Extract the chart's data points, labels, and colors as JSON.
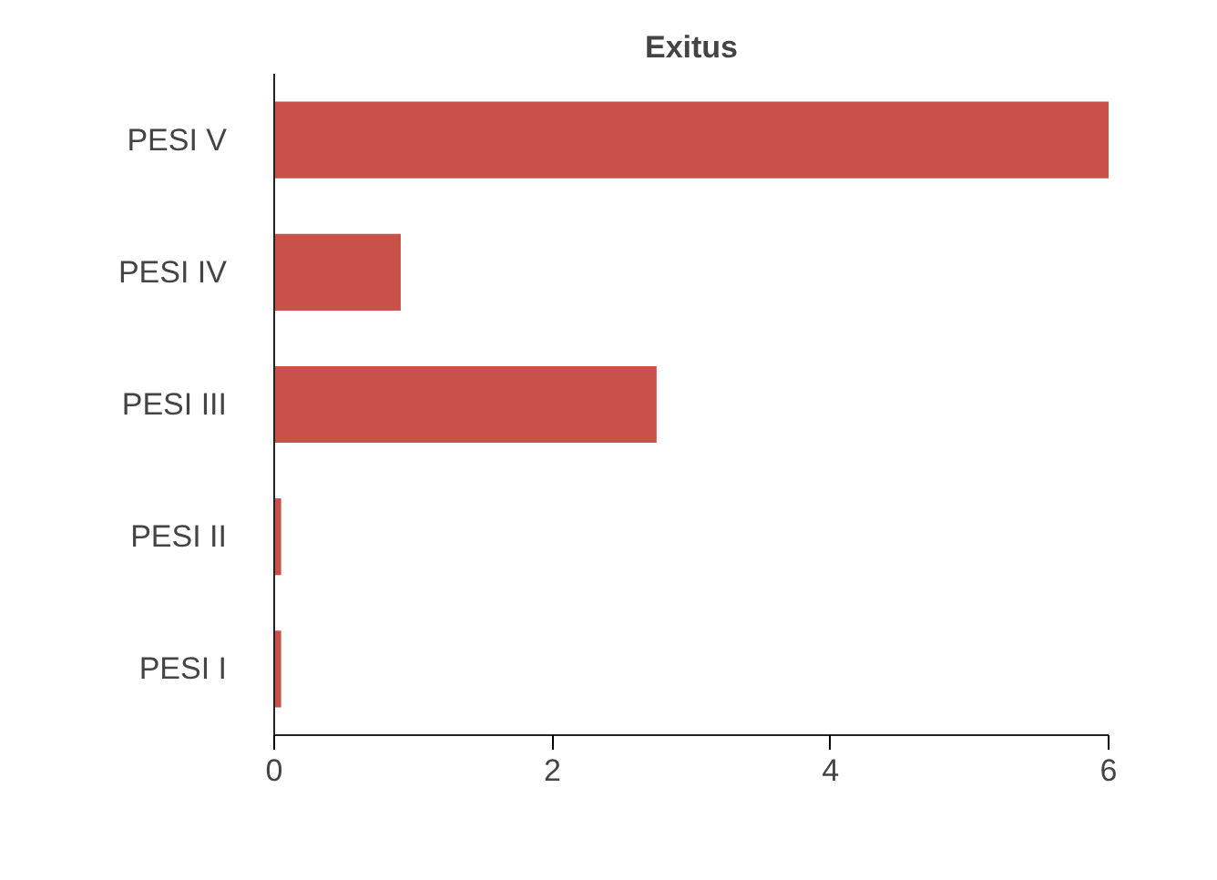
{
  "chart_data": {
    "type": "bar",
    "orientation": "horizontal",
    "title": "Exitus",
    "categories": [
      "PESI V",
      "PESI IV",
      "PESI III",
      "PESI II",
      "PESI I"
    ],
    "values": [
      6,
      0.91,
      2.75,
      0.05,
      0.05
    ],
    "color": "#c8524a",
    "xlim": [
      0,
      6
    ],
    "xticks": [
      0,
      2,
      4,
      6
    ],
    "grid": false
  }
}
